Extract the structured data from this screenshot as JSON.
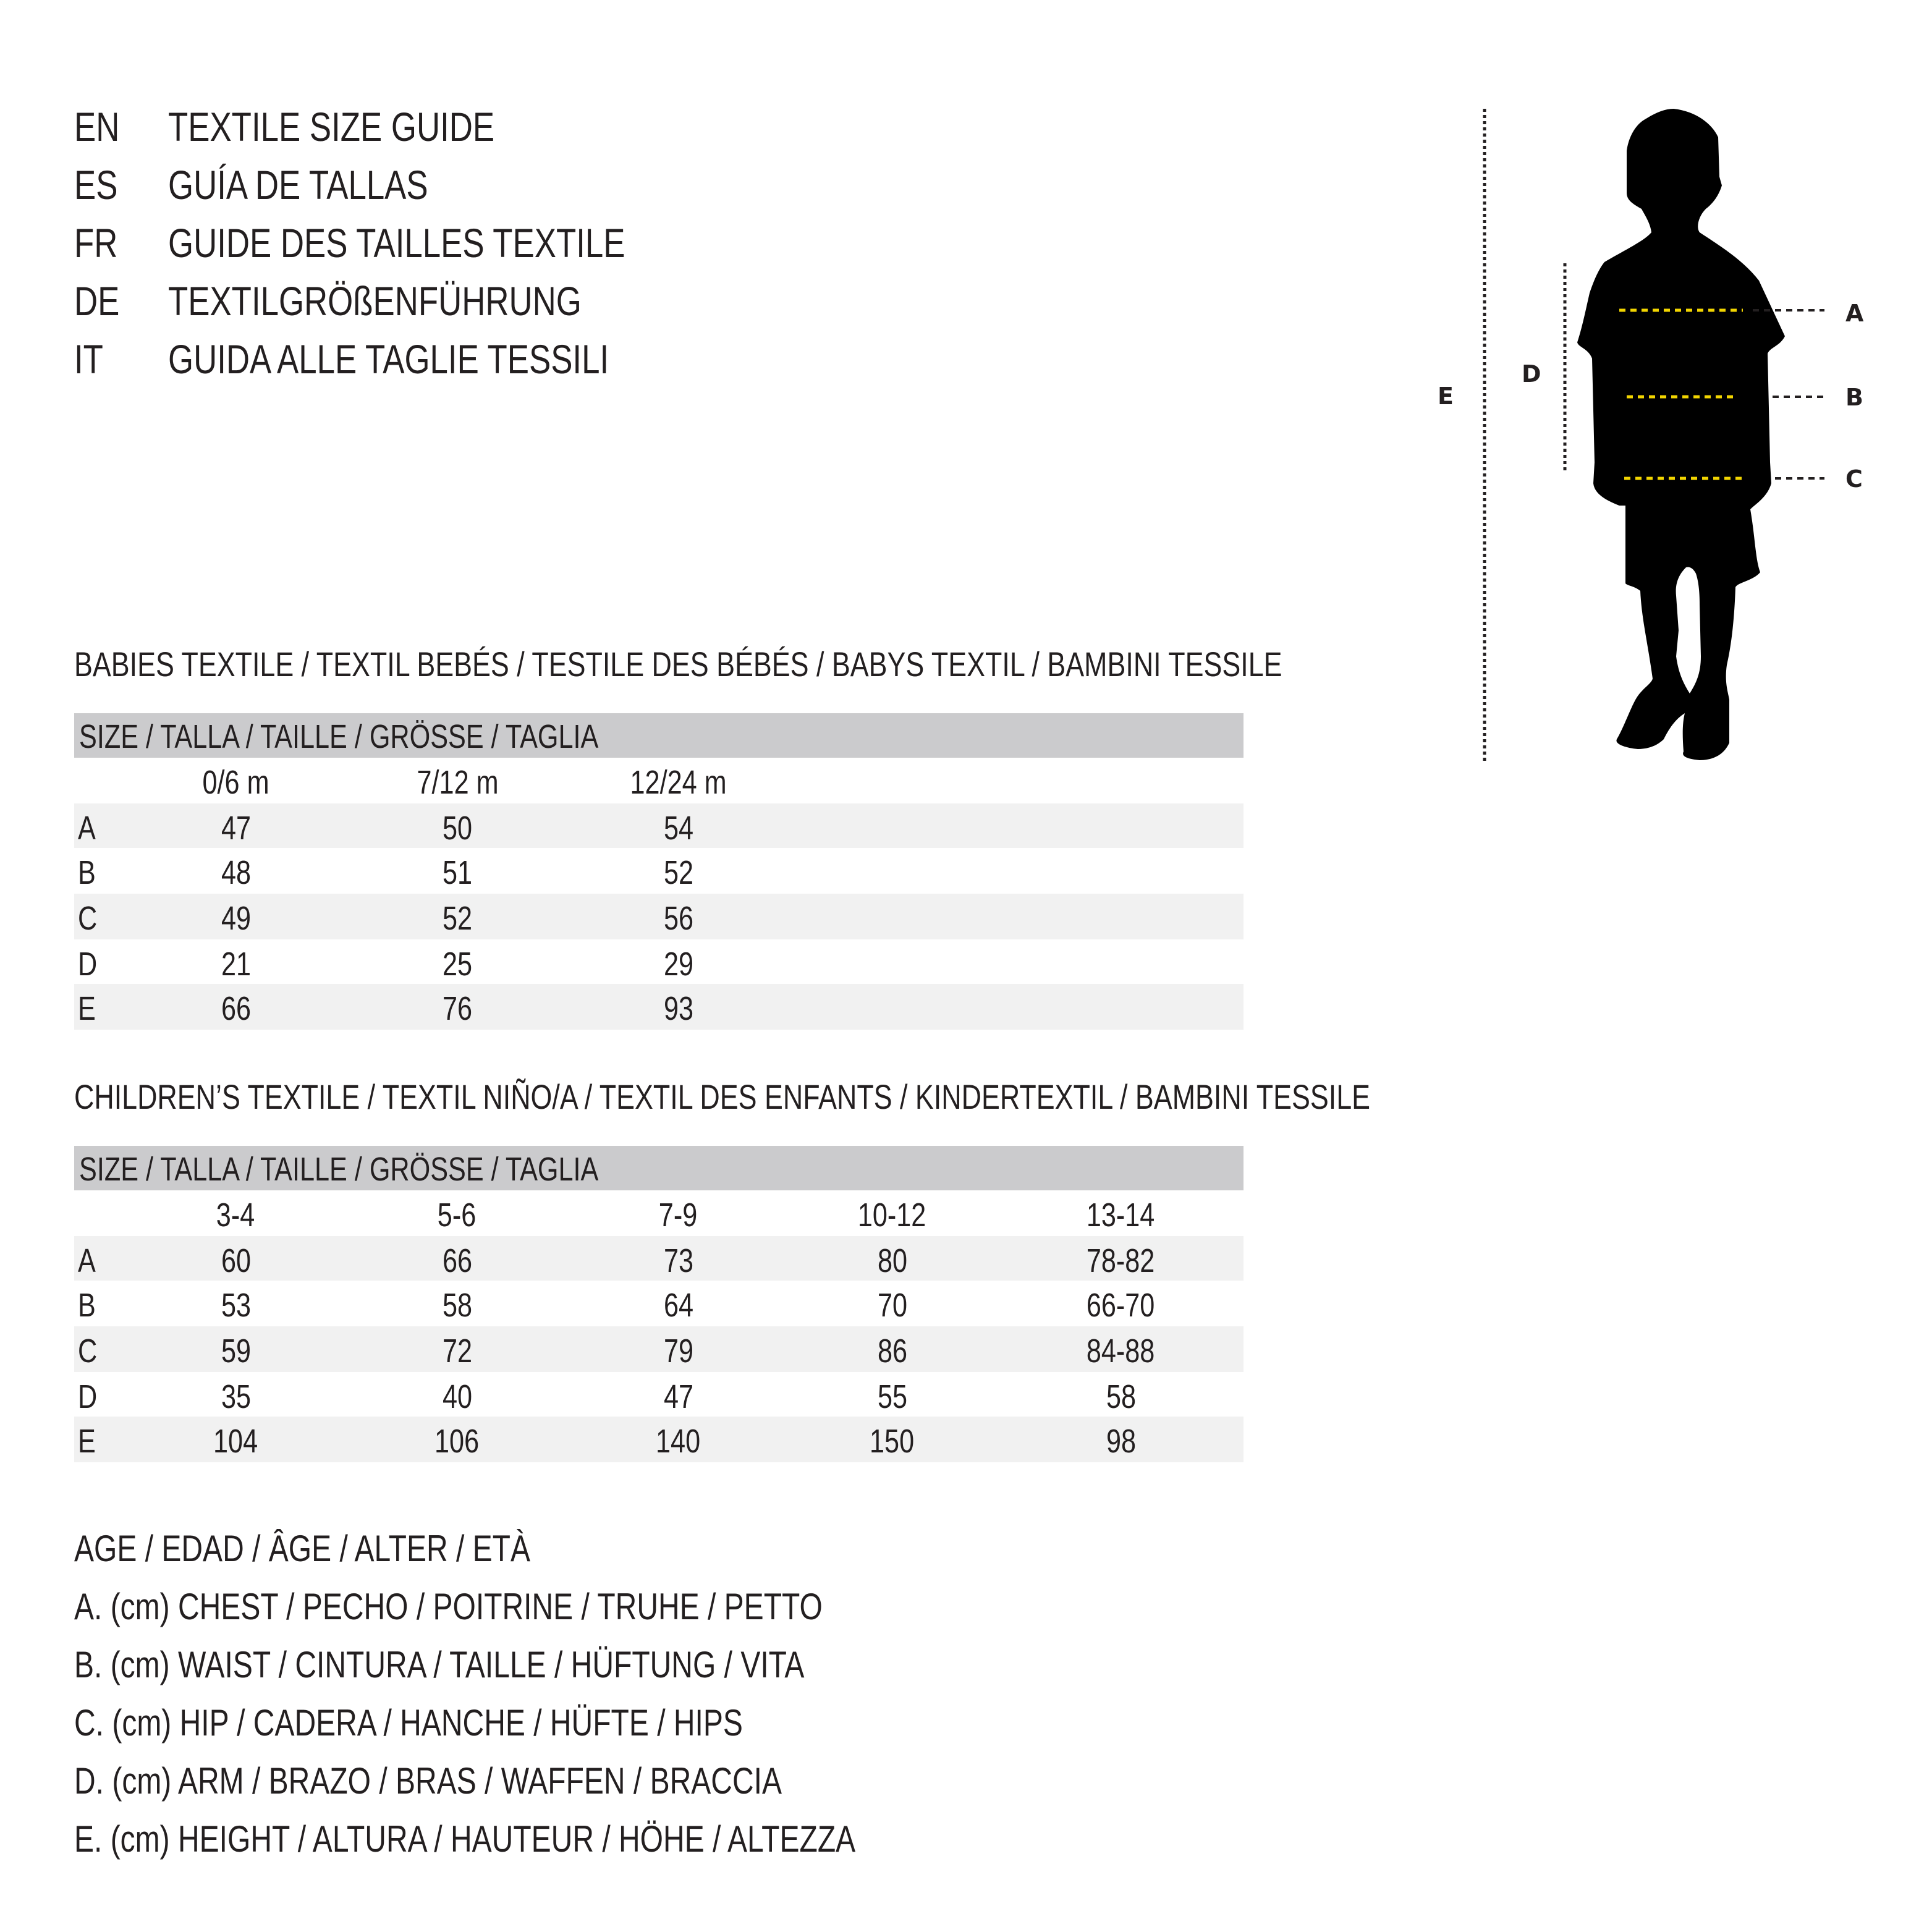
{
  "titles": [
    {
      "code": "EN",
      "text": "TEXTILE SIZE GUIDE"
    },
    {
      "code": "ES",
      "text": "GUÍA DE TALLAS"
    },
    {
      "code": "FR",
      "text": "GUIDE DES TAILLES TEXTILE"
    },
    {
      "code": "DE",
      "text": "TEXTILGRÖßENFÜHRUNG"
    },
    {
      "code": "IT",
      "text": "GUIDA ALLE TAGLIE TESSILI"
    }
  ],
  "figure": {
    "labels": {
      "A": "A",
      "B": "B",
      "C": "C",
      "D": "D",
      "E": "E"
    },
    "colors": {
      "measure_line": "#f2d500",
      "guide_line": "#231f20",
      "silhouette": "#000000"
    }
  },
  "babies": {
    "heading": "BABIES TEXTILE / TEXTIL BEBÉS / TESTILE DES BÉBÉS / BABYS TEXTIL / BAMBINI TESSILE",
    "size_header": "SIZE / TALLA / TAILLE / GRÖSSE / TAGLIA",
    "columns": [
      "0/6 m",
      "7/12 m",
      "12/24 m"
    ],
    "rows": [
      {
        "label": "A",
        "values": [
          "47",
          "50",
          "54"
        ]
      },
      {
        "label": "B",
        "values": [
          "48",
          "51",
          "52"
        ]
      },
      {
        "label": "C",
        "values": [
          "49",
          "52",
          "56"
        ]
      },
      {
        "label": "D",
        "values": [
          "21",
          "25",
          "29"
        ]
      },
      {
        "label": "E",
        "values": [
          "66",
          "76",
          "93"
        ]
      }
    ]
  },
  "children": {
    "heading": "CHILDREN’S TEXTILE / TEXTIL NIÑO/A / TEXTIL DES ENFANTS / KINDERTEXTIL / BAMBINI TESSILE",
    "size_header": "SIZE / TALLA / TAILLE / GRÖSSE / TAGLIA",
    "columns": [
      "3-4",
      "5-6",
      "7-9",
      "10-12",
      "13-14"
    ],
    "rows": [
      {
        "label": "A",
        "values": [
          "60",
          "66",
          "73",
          "80",
          "78-82"
        ]
      },
      {
        "label": "B",
        "values": [
          "53",
          "58",
          "64",
          "70",
          "66-70"
        ]
      },
      {
        "label": "C",
        "values": [
          "59",
          "72",
          "79",
          "86",
          "84-88"
        ]
      },
      {
        "label": "D",
        "values": [
          "35",
          "40",
          "47",
          "55",
          "58"
        ]
      },
      {
        "label": "E",
        "values": [
          "104",
          "106",
          "140",
          "150",
          "98"
        ]
      }
    ]
  },
  "legend": [
    "AGE / EDAD / ÂGE / ALTER / ETÀ",
    "A. (cm) CHEST / PECHO / POITRINE / TRUHE / PETTO",
    "B. (cm) WAIST / CINTURA / TAILLE / HÜFTUNG / VITA",
    "C. (cm) HIP / CADERA / HANCHE / HÜFTE / HIPS",
    "D. (cm) ARM / BRAZO / BRAS / WAFFEN / BRACCIA",
    "E. (cm) HEIGHT / ALTURA / HAUTEUR / HÖHE / ALTEZZA"
  ]
}
